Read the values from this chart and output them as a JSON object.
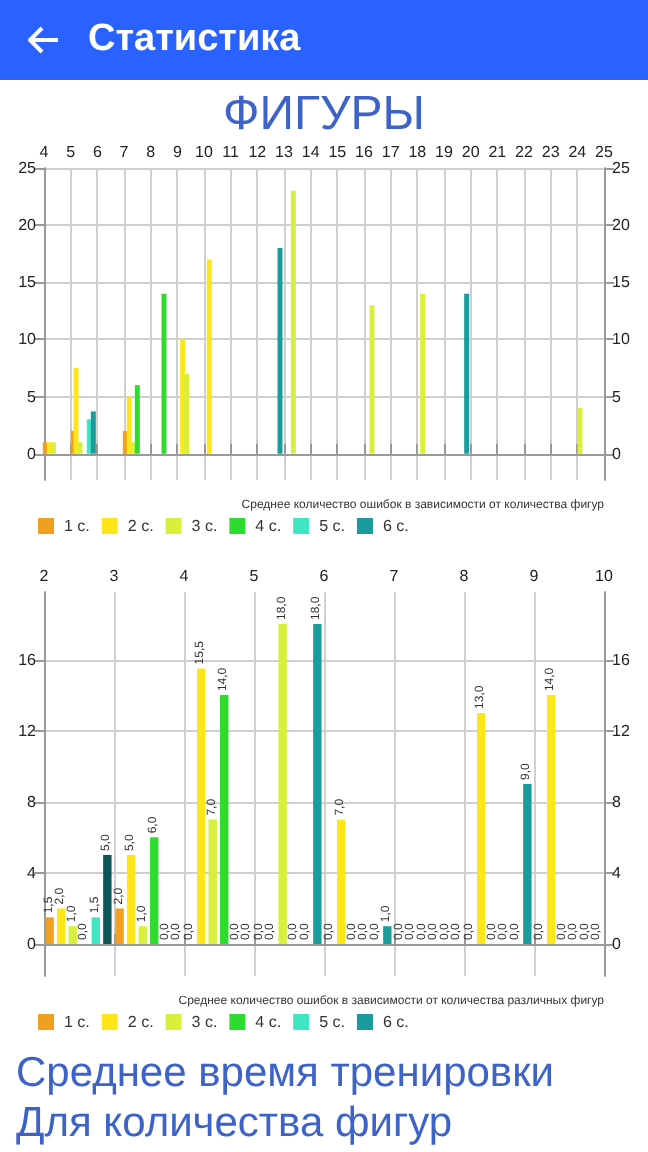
{
  "chart_data": [
    {
      "type": "bar",
      "title": "ФИГУРЫ",
      "annotations": [
        "Статистика",
        "Среднее количество ошибок в зависимости от количества фигур"
      ],
      "xlim": [
        4,
        25
      ],
      "xticks": [
        4,
        5,
        6,
        7,
        8,
        9,
        10,
        11,
        12,
        13,
        14,
        15,
        16,
        17,
        18,
        19,
        20,
        21,
        22,
        23,
        24,
        25
      ],
      "ylim": [
        -2.3,
        25
      ],
      "yticks": [
        0,
        5,
        10,
        15,
        20,
        25
      ],
      "y2lim": [
        -2.3,
        25
      ],
      "y2ticks": [
        0,
        5,
        10,
        15,
        20,
        25
      ],
      "grid": true,
      "legend": "bottom left",
      "series": [
        {
          "name": "1 с.",
          "color": "#f0a01e",
          "x": [
            4.05,
            5.1,
            7.05
          ],
          "values": [
            1,
            2,
            2
          ]
        },
        {
          "name": "2 с.",
          "color": "#ffe619",
          "x": [
            4.2,
            5.2,
            7.2,
            9.2,
            10.2
          ],
          "values": [
            1,
            7.5,
            5,
            10,
            17
          ]
        },
        {
          "name": "3 с.",
          "color": "#d7f03c",
          "x": [
            4.35,
            5.35,
            7.35,
            9.35,
            13.35,
            16.3,
            18.2,
            24.1
          ],
          "values": [
            1,
            1,
            1,
            7,
            23,
            13,
            14,
            4
          ]
        },
        {
          "name": "4 с.",
          "color": "#2edc2e",
          "x": [
            7.5,
            8.5
          ],
          "values": [
            6,
            14
          ]
        },
        {
          "name": "5 с.",
          "color": "#3ee6c3",
          "x": [
            5.7
          ],
          "values": [
            3
          ]
        },
        {
          "name": "6 с.",
          "color": "#1a9c9c",
          "x": [
            5.85,
            12.85,
            19.85
          ],
          "values": [
            3.7,
            18,
            14
          ]
        }
      ]
    },
    {
      "type": "bar",
      "annotations": [
        "Среднее количество ошибок в зависимости от количества различных фигур",
        "Среднее время тренировки",
        "Для количества фигур"
      ],
      "xlim": [
        2,
        10
      ],
      "xticks": [
        2,
        3,
        4,
        5,
        6,
        7,
        8,
        9,
        10
      ],
      "ylim": [
        -1.8,
        19.8
      ],
      "yticks": [
        0,
        4,
        8,
        12,
        16
      ],
      "y2lim": [
        -1.8,
        19.8
      ],
      "y2ticks": [
        0,
        4,
        8,
        12,
        16
      ],
      "grid": true,
      "legend": "bottom left",
      "series": [
        {
          "name": "1 с.",
          "color": "#f0a01e",
          "x": [
            2.08,
            3.08,
            4.08,
            5.08,
            6.08,
            7.08,
            8.08,
            9.08
          ],
          "values": [
            1.5,
            2,
            0,
            0,
            0,
            0,
            0,
            0
          ],
          "value_labels": [
            "1,5",
            "2,0",
            "0,0",
            "0,0",
            "0,0",
            "0,0",
            "0,0",
            "0,0"
          ]
        },
        {
          "name": "2 с.",
          "color": "#ffe619",
          "x": [
            2.245,
            3.245,
            4.245,
            5.245,
            6.245,
            7.245,
            8.245,
            9.245
          ],
          "values": [
            2,
            5,
            15.5,
            0,
            7,
            0,
            13,
            14
          ],
          "value_labels": [
            "2,0",
            "5,0",
            "15,5",
            "0,0",
            "7,0",
            "0,0",
            "13,0",
            "14,0"
          ]
        },
        {
          "name": "3 с.",
          "color": "#d7f03c",
          "x": [
            2.41,
            3.41,
            4.41,
            5.41,
            6.41,
            7.41,
            8.41,
            9.41
          ],
          "values": [
            1,
            1,
            7,
            18,
            0,
            0,
            0,
            0
          ],
          "value_labels": [
            "1,0",
            "1,0",
            "7,0",
            "18,0",
            "0,0",
            "0,0",
            "0,0",
            "0,0"
          ]
        },
        {
          "name": "4 с.",
          "color": "#2edc2e",
          "x": [
            2.575,
            3.575,
            4.575,
            5.575,
            6.575,
            7.575,
            8.575,
            9.575
          ],
          "values": [
            0,
            6,
            14,
            0,
            0,
            0,
            0,
            0
          ],
          "value_labels": [
            "0,0",
            "6,0",
            "14,0",
            "0,0",
            "0,0",
            "0,0",
            "0,0",
            "0,0"
          ]
        },
        {
          "name": "5 с.",
          "color": "#3ee6c3",
          "x": [
            2.74,
            3.74,
            4.74,
            5.74,
            6.74,
            7.74,
            8.74,
            9.74
          ],
          "values": [
            1.5,
            0,
            0,
            0,
            0,
            0,
            0,
            0
          ],
          "value_labels": [
            "1,5",
            "0,0",
            "0,0",
            "0,0",
            "0,0",
            "0,0",
            "0,0",
            "0,0"
          ]
        },
        {
          "name": "6 с.",
          "color": "#1a9c9c",
          "colors": [
            "#0e5656",
            "#1a9c9c",
            "#1a9c9c",
            "#1a9c9c",
            "#1a9c9c",
            "#1a9c9c",
            "#1a9c9c",
            "#1a9c9c"
          ],
          "x": [
            2.905,
            3.905,
            4.905,
            5.905,
            6.905,
            7.905,
            8.905,
            9.905
          ],
          "values": [
            5,
            0,
            0,
            18,
            1,
            0,
            9,
            0
          ],
          "value_labels": [
            "5,0",
            "0,0",
            "0,0",
            "18,0",
            "1,0",
            "0,0",
            "9,0",
            "0,0"
          ]
        }
      ]
    }
  ]
}
